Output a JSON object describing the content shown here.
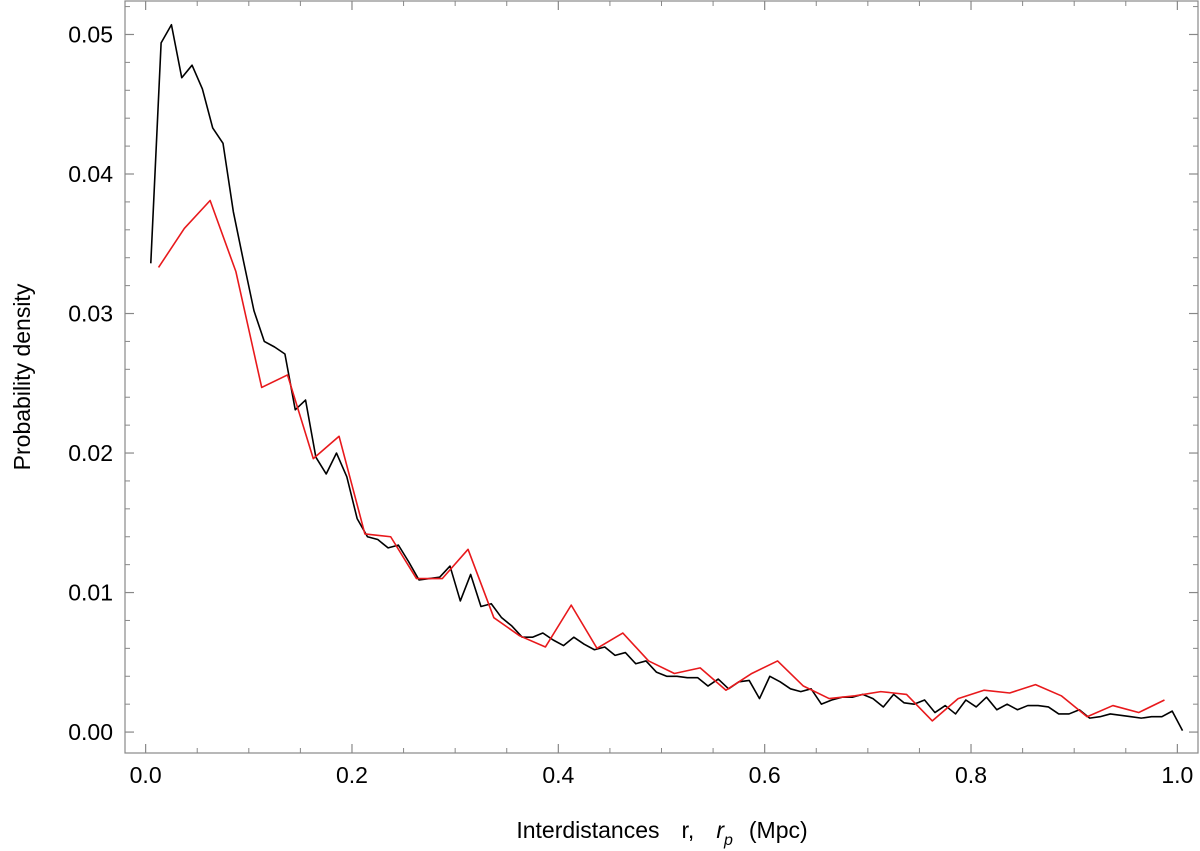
{
  "chart_data": {
    "type": "line",
    "title": "",
    "xlabel": {
      "prefix": "Interdistances",
      "var1": "r,",
      "var2_main": "r",
      "var2_sub": "p",
      "unit": "(Mpc)"
    },
    "ylabel": "Probability density",
    "xlim": [
      -0.02,
      1.02
    ],
    "ylim": [
      -0.0015,
      0.0524
    ],
    "x_ticks": [
      0.0,
      0.2,
      0.4,
      0.6,
      0.8,
      1.0
    ],
    "x_tick_labels": [
      "0.0",
      "0.2",
      "0.4",
      "0.6",
      "0.8",
      "1.0"
    ],
    "y_ticks": [
      0.0,
      0.01,
      0.02,
      0.03,
      0.04,
      0.05
    ],
    "y_tick_labels": [
      "0.00",
      "0.01",
      "0.02",
      "0.03",
      "0.04",
      "0.05"
    ],
    "grid": false,
    "legend": "none",
    "series": [
      {
        "color": "#000000",
        "x": [
          0.005,
          0.015,
          0.025,
          0.035,
          0.045,
          0.055,
          0.065,
          0.075,
          0.085,
          0.095,
          0.105,
          0.115,
          0.125,
          0.135,
          0.145,
          0.155,
          0.165,
          0.175,
          0.185,
          0.195,
          0.205,
          0.215,
          0.225,
          0.235,
          0.245,
          0.255,
          0.265,
          0.275,
          0.285,
          0.295,
          0.305,
          0.315,
          0.325,
          0.335,
          0.345,
          0.355,
          0.365,
          0.375,
          0.385,
          0.395,
          0.405,
          0.415,
          0.425,
          0.435,
          0.445,
          0.455,
          0.465,
          0.475,
          0.485,
          0.495,
          0.505,
          0.515,
          0.525,
          0.535,
          0.545,
          0.555,
          0.565,
          0.575,
          0.585,
          0.595,
          0.605,
          0.615,
          0.625,
          0.635,
          0.645,
          0.655,
          0.665,
          0.675,
          0.685,
          0.695,
          0.705,
          0.715,
          0.725,
          0.735,
          0.745,
          0.755,
          0.765,
          0.775,
          0.785,
          0.795,
          0.805,
          0.815,
          0.825,
          0.835,
          0.845,
          0.855,
          0.865,
          0.875,
          0.885,
          0.895,
          0.905,
          0.915,
          0.925,
          0.935,
          0.945,
          0.955,
          0.965,
          0.975,
          0.985,
          0.995,
          1.005
        ],
        "y": [
          0.0336,
          0.0494,
          0.0507,
          0.0469,
          0.0478,
          0.0461,
          0.0433,
          0.0422,
          0.0373,
          0.0337,
          0.0302,
          0.028,
          0.0276,
          0.0271,
          0.0231,
          0.0238,
          0.0197,
          0.0185,
          0.02,
          0.0183,
          0.0153,
          0.014,
          0.0138,
          0.0132,
          0.0134,
          0.0122,
          0.0109,
          0.011,
          0.0111,
          0.0119,
          0.0094,
          0.0113,
          0.009,
          0.0092,
          0.0082,
          0.0076,
          0.0068,
          0.0068,
          0.0071,
          0.0066,
          0.0062,
          0.0068,
          0.0063,
          0.0059,
          0.0061,
          0.0055,
          0.0057,
          0.0049,
          0.0051,
          0.0043,
          0.004,
          0.004,
          0.0039,
          0.0039,
          0.0033,
          0.0038,
          0.0031,
          0.0036,
          0.0037,
          0.0024,
          0.004,
          0.0036,
          0.0031,
          0.0029,
          0.0031,
          0.002,
          0.0023,
          0.0025,
          0.0025,
          0.0027,
          0.0024,
          0.0018,
          0.0027,
          0.0021,
          0.002,
          0.0023,
          0.0014,
          0.0019,
          0.0013,
          0.0023,
          0.0018,
          0.0025,
          0.0016,
          0.002,
          0.0016,
          0.0019,
          0.0019,
          0.0018,
          0.0013,
          0.0013,
          0.0016,
          0.001,
          0.0011,
          0.0013,
          0.0012,
          0.0011,
          0.001,
          0.0011,
          0.0011,
          0.0015,
          0.0001
        ]
      },
      {
        "color": "#e8191c",
        "x": [
          0.0125,
          0.0375,
          0.0625,
          0.0875,
          0.1125,
          0.1375,
          0.1625,
          0.1875,
          0.2125,
          0.2375,
          0.2625,
          0.2875,
          0.3125,
          0.3375,
          0.3625,
          0.3875,
          0.4125,
          0.4375,
          0.4625,
          0.4875,
          0.5125,
          0.5375,
          0.5625,
          0.5875,
          0.6125,
          0.6375,
          0.6625,
          0.6875,
          0.7125,
          0.7375,
          0.7625,
          0.7875,
          0.8125,
          0.8375,
          0.8625,
          0.8875,
          0.9125,
          0.9375,
          0.9625,
          0.9875
        ],
        "y": [
          0.0333,
          0.0361,
          0.0381,
          0.033,
          0.0247,
          0.0256,
          0.0196,
          0.0212,
          0.0142,
          0.014,
          0.011,
          0.011,
          0.0131,
          0.0082,
          0.0069,
          0.0061,
          0.0091,
          0.006,
          0.0071,
          0.0051,
          0.0042,
          0.0046,
          0.003,
          0.0042,
          0.0051,
          0.0033,
          0.0024,
          0.0026,
          0.0029,
          0.0027,
          0.0008,
          0.0024,
          0.003,
          0.0028,
          0.0034,
          0.0026,
          0.0011,
          0.0019,
          0.0014,
          0.0023
        ]
      }
    ]
  }
}
